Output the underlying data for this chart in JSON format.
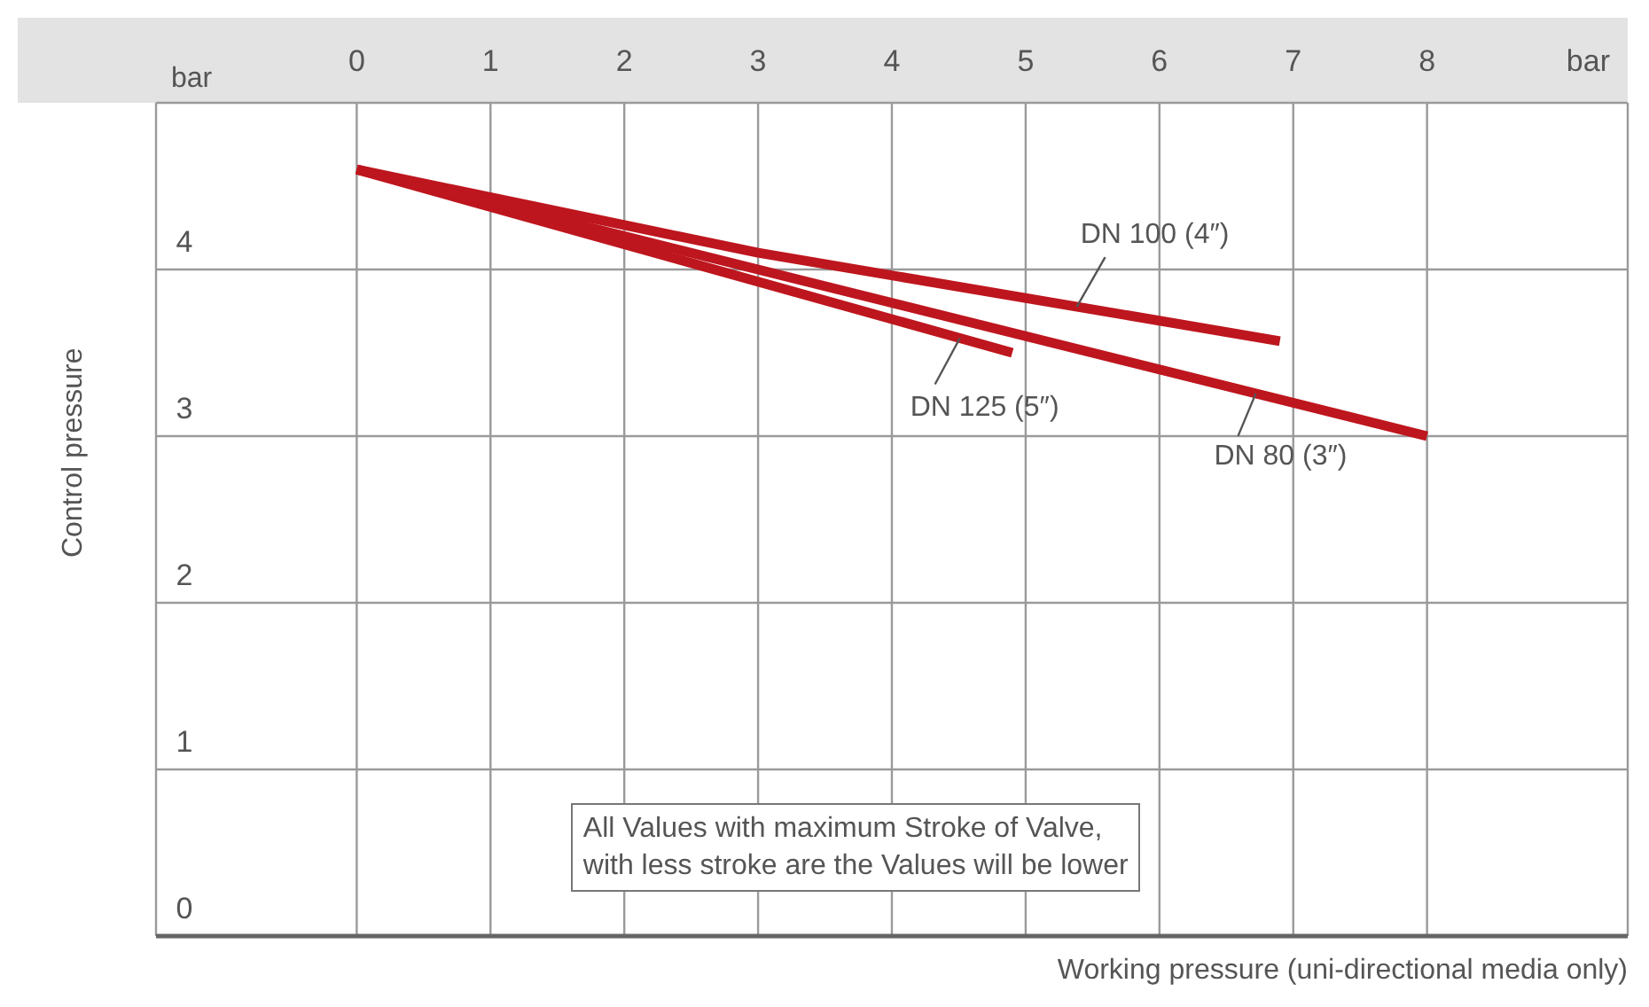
{
  "chart_data": {
    "type": "line",
    "xlabel": "Working pressure (uni-directional media only)",
    "ylabel": "Control pressure",
    "annotations": [
      "bar",
      "bar",
      "All Values with maximum Stroke of Valve,\nwith less stroke are the Values will be lower"
    ],
    "series": [
      {
        "name": "DN 100 (4″)",
        "color": "#be161e",
        "x": [
          0,
          3,
          6.9
        ],
        "values": [
          4.6,
          4.1,
          3.57
        ]
      },
      {
        "name": "DN 125 (5″)",
        "color": "#be161e",
        "x": [
          0,
          4.9
        ],
        "values": [
          4.6,
          3.5
        ]
      },
      {
        "name": "DN 80 (3″)",
        "color": "#be161e",
        "x": [
          0,
          8
        ],
        "values": [
          4.6,
          3.0
        ]
      }
    ],
    "xlim": [
      -1.5,
      9.5
    ],
    "xticks": [
      0,
      1,
      2,
      3,
      4,
      5,
      6,
      7,
      8
    ],
    "ylim": [
      0,
      5
    ],
    "yticks": [
      0,
      1,
      2,
      3,
      4
    ],
    "grid": true,
    "legend": false,
    "marker": "none",
    "line_style": "solid"
  }
}
